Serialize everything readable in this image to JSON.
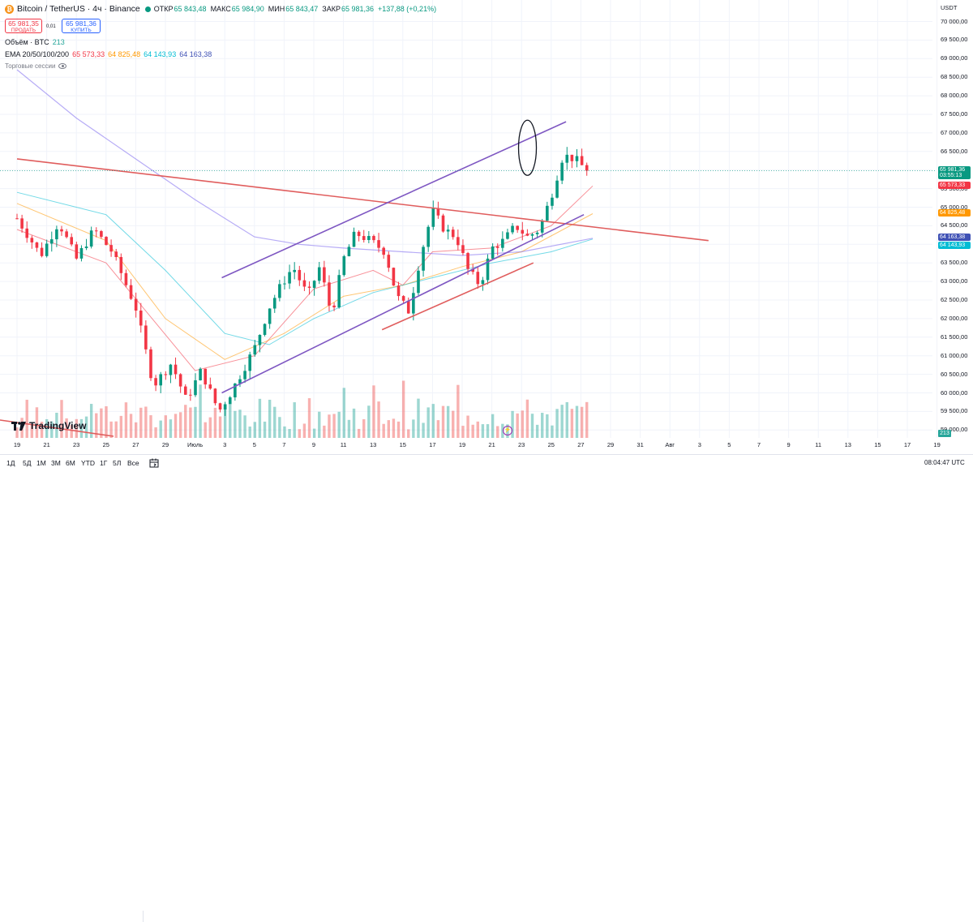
{
  "header": {
    "symbol_title": "Bitcoin / TetherUS · 4ч · Binance",
    "coin_glyph": "₿",
    "ohlc": [
      {
        "k": "ОТКР",
        "v": "65 843,48"
      },
      {
        "k": "МАКС",
        "v": "65 984,90"
      },
      {
        "k": "МИН",
        "v": "65 843,47"
      },
      {
        "k": "ЗАКР",
        "v": "65 981,36"
      },
      {
        "k": "",
        "v": "+137,88 (+0,21%)"
      }
    ]
  },
  "trade": {
    "sell_price": "65 981,35",
    "sell_label": "ПРОДАТЬ",
    "spread": "0,01",
    "buy_price": "65 981,36",
    "buy_label": "КУПИТЬ"
  },
  "volume_legend": {
    "label": "Объём · BTC",
    "value": "213"
  },
  "ema_legend": {
    "label": "EMA 20/50/100/200",
    "values": [
      {
        "v": "65 573,33",
        "color": "#f23645"
      },
      {
        "v": "64 825,48",
        "color": "#ff9800"
      },
      {
        "v": "64 143,93",
        "color": "#00bcd4"
      },
      {
        "v": "64 163,38",
        "color": "#3f51b5"
      }
    ]
  },
  "sessions_label": "Торговые сессии",
  "logo_text": "TradingView",
  "currency": "USDT",
  "price_badges": [
    {
      "price": "65 981,36",
      "sub": "03:55:13",
      "color": "#089981"
    },
    {
      "price": "65 573,33",
      "color": "#f23645"
    },
    {
      "price": "64 825,48",
      "color": "#ff9800"
    },
    {
      "price": "64 163,38",
      "color": "#3f51b5"
    },
    {
      "price": "64 143,93",
      "color": "#00bcd4"
    }
  ],
  "volume_badge": "213",
  "toolbar": {
    "timeframes": [
      "1Д",
      "5Д",
      "1М",
      "3М",
      "6М",
      "YTD",
      "1Г",
      "5Л",
      "Все"
    ],
    "clock": "08:04:47 UTC"
  },
  "chart_data": {
    "type": "candlestick",
    "title": "Bitcoin / TetherUS · 4ч · Binance",
    "ylim": [
      59000,
      70250
    ],
    "y_ticks": [
      "70 000,00",
      "69 500,00",
      "69 000,00",
      "68 500,00",
      "68 000,00",
      "67 500,00",
      "67 000,00",
      "66 500,00",
      "66 000,00",
      "65 500,00",
      "65 000,00",
      "64 500,00",
      "64 000,00",
      "63 500,00",
      "63 000,00",
      "62 500,00",
      "62 000,00",
      "61 500,00",
      "61 000,00",
      "60 500,00",
      "60 000,00",
      "59 500,00",
      "59 000,00"
    ],
    "x_ticks": [
      "19",
      "21",
      "23",
      "25",
      "27",
      "29",
      "Июль",
      "3",
      "5",
      "7",
      "9",
      "11",
      "13",
      "15",
      "17",
      "19",
      "21",
      "23",
      "25",
      "27",
      "29",
      "31",
      "Авг",
      "3",
      "5",
      "7",
      "9",
      "11",
      "13",
      "15",
      "17",
      "19"
    ],
    "candles_x_range_ticks": [
      0,
      19.6
    ],
    "close_path": [
      [
        0,
        64700
      ],
      [
        0.8,
        63700
      ],
      [
        1.4,
        64600
      ],
      [
        2.0,
        63600
      ],
      [
        2.6,
        64400
      ],
      [
        3.2,
        63800
      ],
      [
        4.0,
        62300
      ],
      [
        4.6,
        60200
      ],
      [
        5.2,
        60800
      ],
      [
        5.7,
        59800
      ],
      [
        6.2,
        60600
      ],
      [
        6.8,
        59500
      ],
      [
        7.2,
        60000
      ],
      [
        7.6,
        60600
      ],
      [
        8.0,
        61200
      ],
      [
        8.5,
        62300
      ],
      [
        8.9,
        62900
      ],
      [
        9.3,
        63400
      ],
      [
        9.8,
        62600
      ],
      [
        10.2,
        63400
      ],
      [
        10.6,
        62100
      ],
      [
        11.0,
        63600
      ],
      [
        11.4,
        64300
      ],
      [
        11.9,
        64100
      ],
      [
        12.4,
        63800
      ],
      [
        12.8,
        62600
      ],
      [
        13.2,
        62200
      ],
      [
        13.6,
        63700
      ],
      [
        14.0,
        64900
      ],
      [
        14.4,
        64400
      ],
      [
        14.8,
        64200
      ],
      [
        15.2,
        63300
      ],
      [
        15.6,
        62900
      ],
      [
        16.0,
        63900
      ],
      [
        16.4,
        64100
      ],
      [
        16.8,
        64500
      ],
      [
        17.2,
        64200
      ],
      [
        17.6,
        64400
      ],
      [
        18.0,
        65300
      ],
      [
        18.4,
        66400
      ],
      [
        18.8,
        66300
      ],
      [
        19.2,
        65981
      ]
    ],
    "ema_series": [
      {
        "name": "EMA 20",
        "color": "#f23645",
        "points": [
          [
            0,
            64400
          ],
          [
            3,
            63500
          ],
          [
            6,
            60600
          ],
          [
            8,
            61000
          ],
          [
            10,
            62800
          ],
          [
            12,
            63300
          ],
          [
            13,
            62900
          ],
          [
            14,
            63800
          ],
          [
            16,
            63900
          ],
          [
            18,
            64500
          ],
          [
            19.4,
            65573
          ]
        ]
      },
      {
        "name": "EMA 50",
        "color": "#ff9800",
        "points": [
          [
            0,
            65100
          ],
          [
            3,
            64100
          ],
          [
            5,
            62000
          ],
          [
            7,
            60900
          ],
          [
            9,
            61600
          ],
          [
            11,
            62600
          ],
          [
            13,
            62900
          ],
          [
            15,
            63400
          ],
          [
            17,
            63800
          ],
          [
            19.4,
            64825
          ]
        ]
      },
      {
        "name": "EMA 100",
        "color": "#00bcd4",
        "points": [
          [
            0,
            65400
          ],
          [
            3,
            64800
          ],
          [
            5,
            63300
          ],
          [
            7,
            61600
          ],
          [
            8.5,
            61300
          ],
          [
            10,
            62000
          ],
          [
            12,
            62700
          ],
          [
            14,
            63100
          ],
          [
            16,
            63500
          ],
          [
            18,
            63800
          ],
          [
            19.4,
            64143
          ]
        ]
      },
      {
        "name": "EMA 200",
        "color": "#7b68ee",
        "points": [
          [
            0,
            68700
          ],
          [
            2,
            67400
          ],
          [
            4,
            66300
          ],
          [
            6,
            65200
          ],
          [
            8,
            64200
          ],
          [
            9.5,
            64000
          ],
          [
            11,
            63900
          ],
          [
            13,
            63800
          ],
          [
            15,
            63700
          ],
          [
            17,
            63800
          ],
          [
            19.4,
            64163
          ]
        ]
      }
    ],
    "drawings": [
      {
        "type": "trendline",
        "color": "#e05d5d",
        "points": [
          [
            0,
            66300
          ],
          [
            23.3,
            64100
          ]
        ]
      },
      {
        "type": "trendline",
        "color": "#7e57c2",
        "points": [
          [
            6.9,
            63100
          ],
          [
            18.5,
            67300
          ]
        ]
      },
      {
        "type": "trendline",
        "color": "#7e57c2",
        "points": [
          [
            6.9,
            60000
          ],
          [
            19.1,
            64800
          ]
        ]
      },
      {
        "type": "trendline",
        "color": "#e05d5d",
        "points": [
          [
            12.3,
            61700
          ],
          [
            17.4,
            63500
          ]
        ]
      },
      {
        "type": "ellipse",
        "color": "#131722",
        "center": [
          17.2,
          66600
        ]
      }
    ],
    "volume_max": 213
  }
}
